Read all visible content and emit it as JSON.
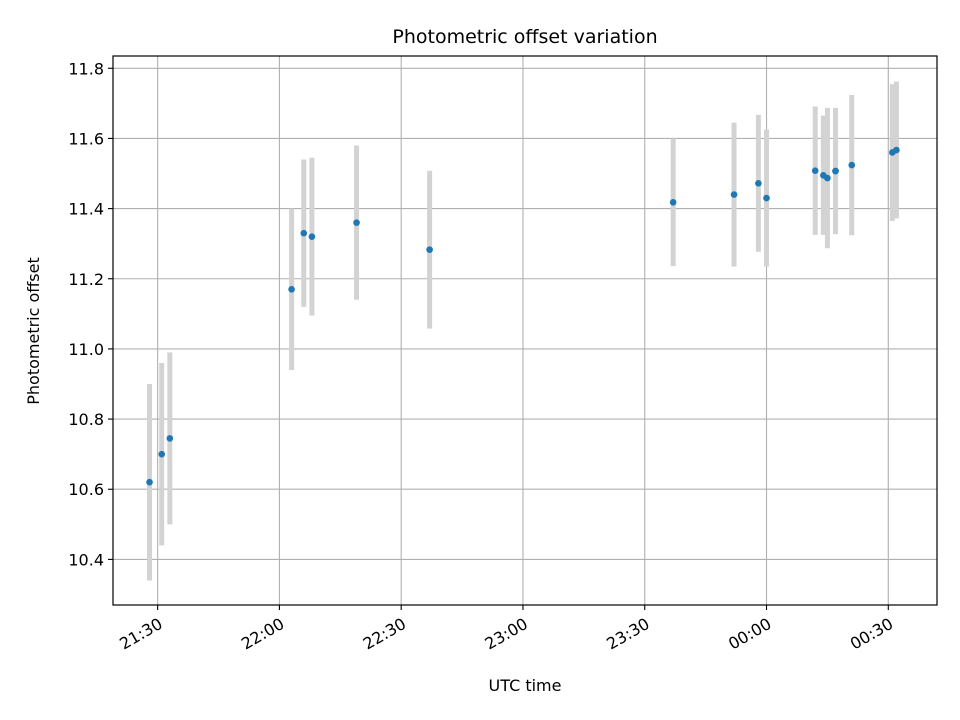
{
  "chart_data": {
    "type": "scatter",
    "title": "Photometric offset variation",
    "xlabel": "UTC time",
    "ylabel": "Photometric offset",
    "x_axis_type": "time",
    "x_range": [
      "21:19",
      "00:42"
    ],
    "x_ticks": [
      {
        "time": "21:30",
        "label": "21:30"
      },
      {
        "time": "22:00",
        "label": "22:00"
      },
      {
        "time": "22:30",
        "label": "22:30"
      },
      {
        "time": "23:00",
        "label": "23:00"
      },
      {
        "time": "23:30",
        "label": "23:30"
      },
      {
        "time": "00:00",
        "label": "00:00"
      },
      {
        "time": "00:30",
        "label": "00:30"
      }
    ],
    "ylim": [
      10.27,
      11.835
    ],
    "y_ticks": [
      10.4,
      10.6,
      10.8,
      11.0,
      11.2,
      11.4,
      11.6,
      11.8
    ],
    "grid": true,
    "point_color": "#1f77b4",
    "errorbar_color": "#d3d3d3",
    "points": [
      {
        "time": "21:28",
        "y": 10.62,
        "yerr": 0.28
      },
      {
        "time": "21:31",
        "y": 10.7,
        "yerr": 0.26
      },
      {
        "time": "21:33",
        "y": 10.745,
        "yerr": 0.245
      },
      {
        "time": "22:03",
        "y": 11.17,
        "yerr": 0.23
      },
      {
        "time": "22:06",
        "y": 11.33,
        "yerr": 0.21
      },
      {
        "time": "22:08",
        "y": 11.32,
        "yerr": 0.225
      },
      {
        "time": "22:19",
        "y": 11.36,
        "yerr": 0.22
      },
      {
        "time": "22:37",
        "y": 11.283,
        "yerr": 0.225
      },
      {
        "time": "23:37",
        "y": 11.418,
        "yerr": 0.182
      },
      {
        "time": "23:52",
        "y": 11.44,
        "yerr": 0.205
      },
      {
        "time": "23:58",
        "y": 11.472,
        "yerr": 0.195
      },
      {
        "time": "00:00",
        "y": 11.43,
        "yerr": 0.195
      },
      {
        "time": "00:12",
        "y": 11.508,
        "yerr": 0.183
      },
      {
        "time": "00:14",
        "y": 11.495,
        "yerr": 0.17
      },
      {
        "time": "00:15",
        "y": 11.487,
        "yerr": 0.2
      },
      {
        "time": "00:17",
        "y": 11.507,
        "yerr": 0.18
      },
      {
        "time": "00:17",
        "y": 11.507,
        "yerr": 0.175
      },
      {
        "time": "00:21",
        "y": 11.524,
        "yerr": 0.2
      },
      {
        "time": "00:31",
        "y": 11.56,
        "yerr": 0.195
      },
      {
        "time": "00:32",
        "y": 11.567,
        "yerr": 0.195
      }
    ]
  }
}
